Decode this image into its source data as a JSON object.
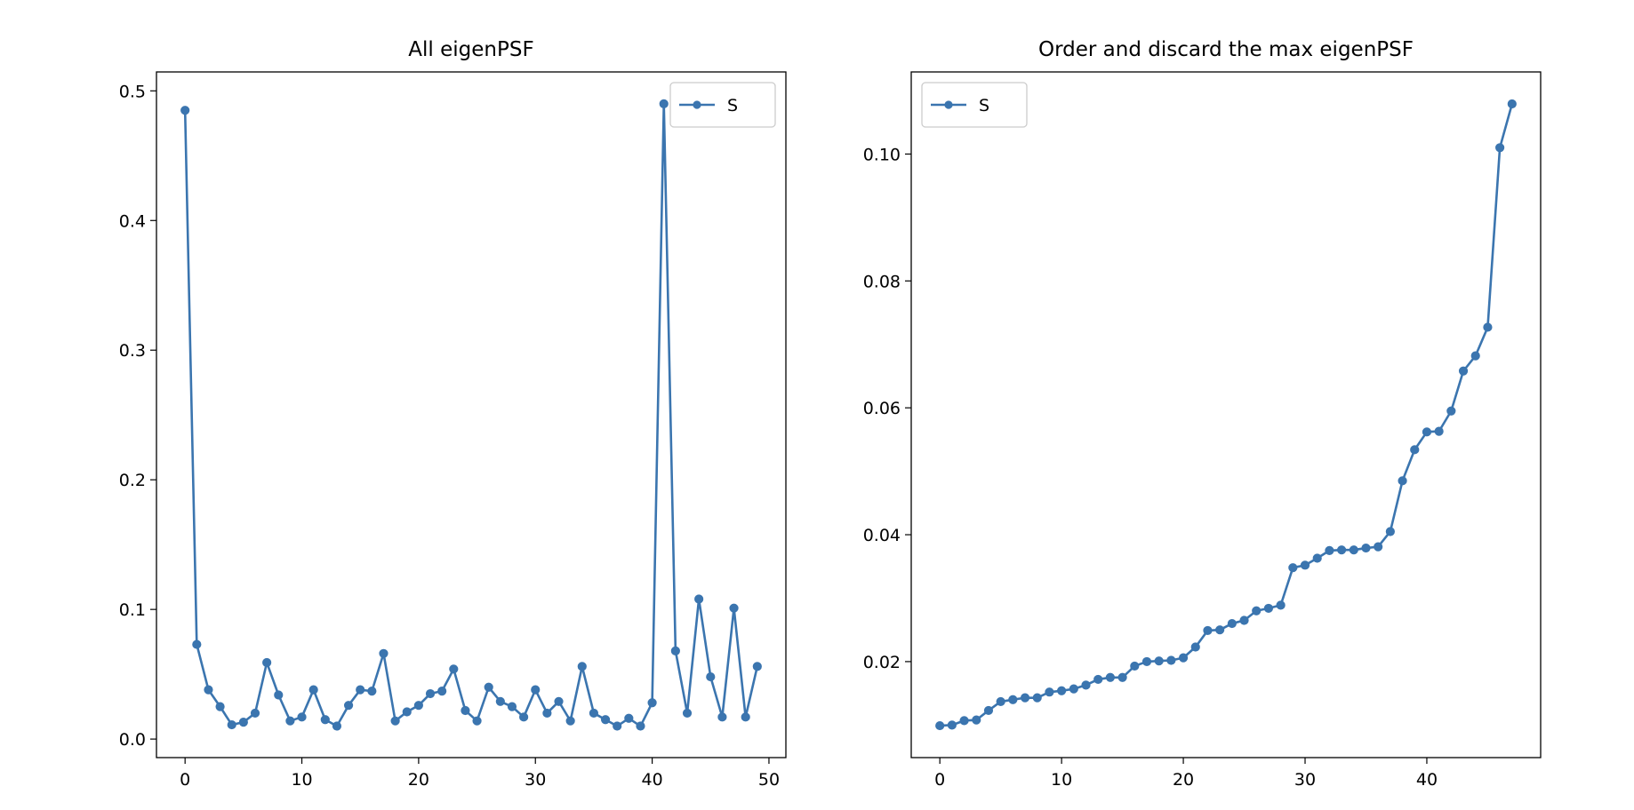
{
  "chart_data": [
    {
      "type": "line",
      "title": "All eigenPSF",
      "xlabel": "",
      "ylabel": "",
      "xlim": [
        -2.45,
        51.45
      ],
      "ylim": [
        -0.0143,
        0.5146
      ],
      "xticks": [
        0,
        10,
        20,
        30,
        40,
        50
      ],
      "yticks": [
        0.0,
        0.1,
        0.2,
        0.3,
        0.4,
        0.5
      ],
      "grid": false,
      "legend": {
        "placement": "upper-right",
        "entries": [
          "S"
        ]
      },
      "series": [
        {
          "name": "S",
          "color": "#3b75af",
          "marker": "circle",
          "x": [
            0,
            1,
            2,
            3,
            4,
            5,
            6,
            7,
            8,
            9,
            10,
            11,
            12,
            13,
            14,
            15,
            16,
            17,
            18,
            19,
            20,
            21,
            22,
            23,
            24,
            25,
            26,
            27,
            28,
            29,
            30,
            31,
            32,
            33,
            34,
            35,
            36,
            37,
            38,
            39,
            40,
            41,
            42,
            43,
            44,
            45,
            46,
            47,
            48,
            49
          ],
          "values": [
            0.485,
            0.073,
            0.038,
            0.025,
            0.011,
            0.013,
            0.02,
            0.059,
            0.034,
            0.014,
            0.017,
            0.038,
            0.015,
            0.01,
            0.026,
            0.038,
            0.037,
            0.066,
            0.014,
            0.021,
            0.026,
            0.035,
            0.037,
            0.054,
            0.022,
            0.014,
            0.04,
            0.029,
            0.025,
            0.017,
            0.038,
            0.02,
            0.029,
            0.014,
            0.056,
            0.02,
            0.015,
            0.01,
            0.016,
            0.01,
            0.028,
            0.49,
            0.068,
            0.02,
            0.108,
            0.048,
            0.017,
            0.101,
            0.017,
            0.056
          ]
        }
      ]
    },
    {
      "type": "line",
      "title": "Order and discard the max eigenPSF",
      "xlabel": "",
      "ylabel": "",
      "xlim": [
        -2.35,
        49.35
      ],
      "ylim": [
        0.00487,
        0.11294
      ],
      "xticks": [
        0,
        10,
        20,
        30,
        40
      ],
      "yticks": [
        0.02,
        0.04,
        0.06,
        0.08,
        0.1
      ],
      "grid": false,
      "legend": {
        "placement": "upper-left",
        "entries": [
          "S"
        ]
      },
      "series": [
        {
          "name": "S",
          "color": "#3b75af",
          "marker": "circle",
          "x": [
            0,
            1,
            2,
            3,
            4,
            5,
            6,
            7,
            8,
            9,
            10,
            11,
            12,
            13,
            14,
            15,
            16,
            17,
            18,
            19,
            20,
            21,
            22,
            23,
            24,
            25,
            26,
            27,
            28,
            29,
            30,
            31,
            32,
            33,
            34,
            35,
            36,
            37,
            38,
            39,
            40,
            41,
            42,
            43,
            44,
            45,
            46,
            47
          ],
          "values": [
            0.0099,
            0.01,
            0.0107,
            0.0108,
            0.0123,
            0.0137,
            0.014,
            0.0143,
            0.0143,
            0.0152,
            0.0154,
            0.0157,
            0.0163,
            0.0172,
            0.0175,
            0.0175,
            0.0193,
            0.02,
            0.0201,
            0.0202,
            0.0206,
            0.0223,
            0.0249,
            0.025,
            0.026,
            0.0265,
            0.028,
            0.0284,
            0.0289,
            0.0348,
            0.0352,
            0.0363,
            0.0375,
            0.0376,
            0.0376,
            0.0379,
            0.0381,
            0.0405,
            0.0485,
            0.0534,
            0.0562,
            0.0563,
            0.0595,
            0.0658,
            0.0682,
            0.0727,
            0.101,
            0.1079
          ]
        }
      ]
    }
  ]
}
